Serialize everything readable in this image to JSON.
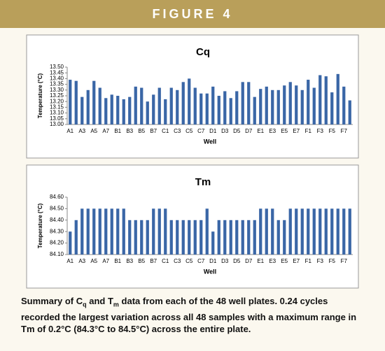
{
  "figure_label": "FIGURE 4",
  "caption": [
    "Summary of C",
    "q",
    " and T",
    "m",
    " data from each of the 48 well plates. 0.24 cycles recorded the largest variation across all 48 samples with a maximum range in Tm of 0.2°C (84.3°C to 84.5°C) across the entire plate."
  ],
  "chart_data": [
    {
      "type": "bar",
      "title": "Cq",
      "x_label": "Well",
      "y_label": "Temperature (°C)",
      "color": "#3a66a6",
      "grid": false,
      "categories": [
        "A1",
        null,
        "A3",
        null,
        "A5",
        null,
        "A7",
        null,
        "B1",
        null,
        "B3",
        null,
        "B5",
        null,
        "B7",
        null,
        "C1",
        null,
        "C3",
        null,
        "C5",
        null,
        "C7",
        null,
        "D1",
        null,
        "D3",
        null,
        "D5",
        null,
        "D7",
        null,
        "E1",
        null,
        "E3",
        null,
        "E5",
        null,
        "E7",
        null,
        "F1",
        null,
        "F3",
        null,
        "F5",
        null,
        "F7",
        null
      ],
      "values": [
        13.39,
        13.38,
        13.24,
        13.3,
        13.38,
        13.32,
        13.23,
        13.26,
        13.25,
        13.22,
        13.24,
        13.33,
        13.32,
        13.2,
        13.26,
        13.32,
        13.22,
        13.32,
        13.3,
        13.37,
        13.4,
        13.32,
        13.27,
        13.27,
        13.33,
        13.25,
        13.29,
        13.23,
        13.29,
        13.37,
        13.37,
        13.24,
        13.31,
        13.33,
        13.3,
        13.3,
        13.34,
        13.37,
        13.34,
        13.3,
        13.39,
        13.32,
        13.43,
        13.42,
        13.28,
        13.44,
        13.33,
        13.21
      ],
      "ylim": [
        13.0,
        13.5
      ],
      "yticks": [
        {
          "value": 13.0,
          "label": "13.00"
        },
        {
          "value": 13.05,
          "label": "13.05"
        },
        {
          "value": 13.1,
          "label": "13.10"
        },
        {
          "value": 13.15,
          "label": "13.15"
        },
        {
          "value": 13.2,
          "label": "13.20"
        },
        {
          "value": 13.25,
          "label": "13.25"
        },
        {
          "value": 13.3,
          "label": "13.30"
        },
        {
          "value": 13.35,
          "label": "13.35"
        },
        {
          "value": 13.4,
          "label": "13.40"
        },
        {
          "value": 13.45,
          "label": "13.45"
        },
        {
          "value": 13.5,
          "label": "13.50"
        }
      ]
    },
    {
      "type": "bar",
      "title": "Tm",
      "x_label": "Well",
      "y_label": "Temperature (°C)",
      "color": "#3a66a6",
      "grid": false,
      "categories": [
        "A1",
        null,
        "A3",
        null,
        "A5",
        null,
        "A7",
        null,
        "B1",
        null,
        "B3",
        null,
        "B5",
        null,
        "B7",
        null,
        "C1",
        null,
        "C3",
        null,
        "C5",
        null,
        "C7",
        null,
        "D1",
        null,
        "D3",
        null,
        "D5",
        null,
        "D7",
        null,
        "E1",
        null,
        "E3",
        null,
        "E5",
        null,
        "E7",
        null,
        "F1",
        null,
        "F3",
        null,
        "F5",
        null,
        "F7",
        null
      ],
      "values": [
        84.3,
        84.4,
        84.5,
        84.5,
        84.5,
        84.5,
        84.5,
        84.5,
        84.5,
        84.5,
        84.4,
        84.4,
        84.4,
        84.4,
        84.5,
        84.5,
        84.5,
        84.4,
        84.4,
        84.4,
        84.4,
        84.4,
        84.4,
        84.5,
        84.3,
        84.4,
        84.4,
        84.4,
        84.4,
        84.4,
        84.4,
        84.4,
        84.5,
        84.5,
        84.5,
        84.4,
        84.4,
        84.5,
        84.5,
        84.5,
        84.5,
        84.5,
        84.5,
        84.5,
        84.5,
        84.5,
        84.5,
        84.5
      ],
      "ylim": [
        84.1,
        84.6
      ],
      "yticks": [
        {
          "value": 84.1,
          "label": "84.10"
        },
        {
          "value": 84.2,
          "label": "84.20"
        },
        {
          "value": 84.3,
          "label": "84.30"
        },
        {
          "value": 84.4,
          "label": "84.40"
        },
        {
          "value": 84.5,
          "label": "84.50"
        },
        {
          "value": 84.6,
          "label": "84.60"
        }
      ]
    }
  ]
}
